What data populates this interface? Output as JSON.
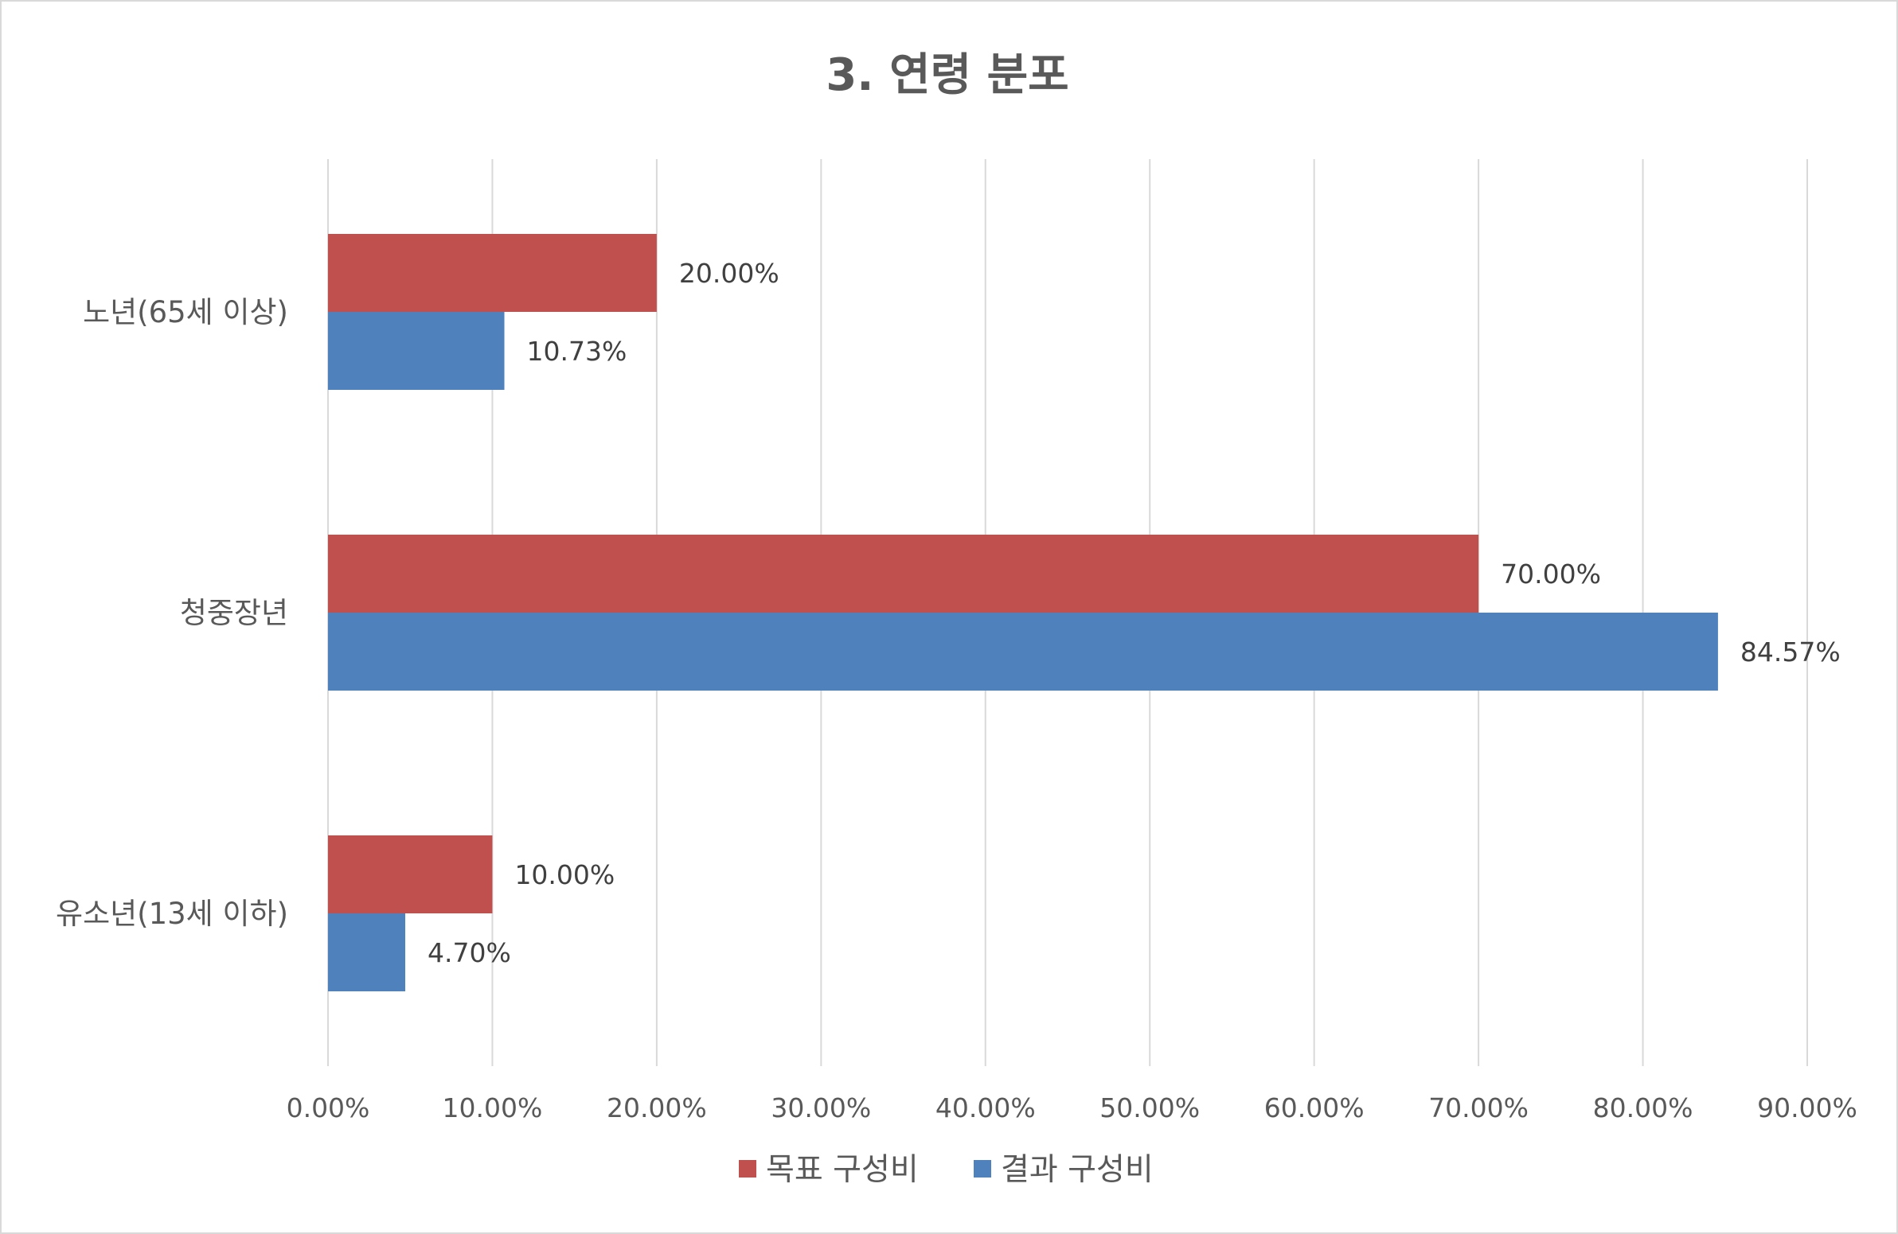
{
  "chart_data": {
    "type": "bar",
    "orientation": "horizontal",
    "title": "3. 연령 분포",
    "categories": [
      "노년(65세 이상)",
      "청중장년",
      "유소년(13세 이하)"
    ],
    "series": [
      {
        "name": "목표 구성비",
        "color": "#c0504d",
        "values": [
          20.0,
          70.0,
          10.0
        ],
        "labels": [
          "20.00%",
          "70.00%",
          "10.00%"
        ]
      },
      {
        "name": "결과 구성비",
        "color": "#4f81bd",
        "values": [
          10.73,
          84.57,
          4.7
        ],
        "labels": [
          "10.73%",
          "84.57%",
          "4.70%"
        ]
      }
    ],
    "xlim": [
      0,
      90
    ],
    "xticks": [
      "0.00%",
      "10.00%",
      "20.00%",
      "30.00%",
      "40.00%",
      "50.00%",
      "60.00%",
      "70.00%",
      "80.00%",
      "90.00%"
    ],
    "grid": true,
    "legend_position": "bottom",
    "gridline_color": "#d9d9d9"
  }
}
